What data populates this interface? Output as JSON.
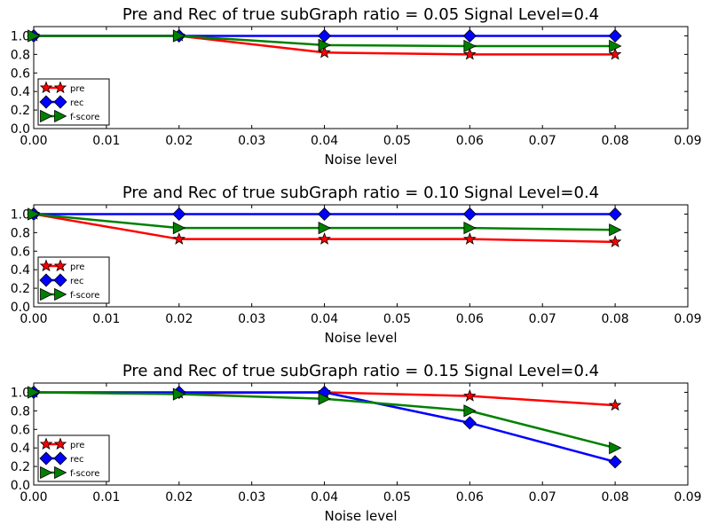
{
  "chart_data": [
    {
      "type": "line",
      "title": "Pre and Rec of true subGraph ratio = 0.05 Signal Level=0.4",
      "xlabel": "Noise level",
      "ylabel": "",
      "xlim": [
        0.0,
        0.09
      ],
      "ylim": [
        0.0,
        1.1
      ],
      "xticks": [
        "0.00",
        "0.01",
        "0.02",
        "0.03",
        "0.04",
        "0.05",
        "0.06",
        "0.07",
        "0.08",
        "0.09"
      ],
      "yticks": [
        "0.0",
        "0.2",
        "0.4",
        "0.6",
        "0.8",
        "1.0"
      ],
      "grid": false,
      "legend_position": "lower-left",
      "x": [
        0.0,
        0.02,
        0.04,
        0.06,
        0.08
      ],
      "series": [
        {
          "name": "pre",
          "color": "#ff0000",
          "marker": "star",
          "values": [
            1.0,
            1.0,
            0.82,
            0.8,
            0.8
          ]
        },
        {
          "name": "rec",
          "color": "#0000ff",
          "marker": "diamond",
          "values": [
            1.0,
            1.0,
            1.0,
            1.0,
            1.0
          ]
        },
        {
          "name": "f-score",
          "color": "#008000",
          "marker": "triangle-right",
          "values": [
            1.0,
            1.0,
            0.9,
            0.89,
            0.89
          ]
        }
      ]
    },
    {
      "type": "line",
      "title": "Pre and Rec of true subGraph ratio = 0.10 Signal Level=0.4",
      "xlabel": "Noise level",
      "ylabel": "",
      "xlim": [
        0.0,
        0.09
      ],
      "ylim": [
        0.0,
        1.1
      ],
      "xticks": [
        "0.00",
        "0.01",
        "0.02",
        "0.03",
        "0.04",
        "0.05",
        "0.06",
        "0.07",
        "0.08",
        "0.09"
      ],
      "yticks": [
        "0.0",
        "0.2",
        "0.4",
        "0.6",
        "0.8",
        "1.0"
      ],
      "grid": false,
      "legend_position": "lower-left",
      "x": [
        0.0,
        0.02,
        0.04,
        0.06,
        0.08
      ],
      "series": [
        {
          "name": "pre",
          "color": "#ff0000",
          "marker": "star",
          "values": [
            1.0,
            0.73,
            0.73,
            0.73,
            0.7
          ]
        },
        {
          "name": "rec",
          "color": "#0000ff",
          "marker": "diamond",
          "values": [
            1.0,
            1.0,
            1.0,
            1.0,
            1.0
          ]
        },
        {
          "name": "f-score",
          "color": "#008000",
          "marker": "triangle-right",
          "values": [
            1.0,
            0.85,
            0.85,
            0.85,
            0.83
          ]
        }
      ]
    },
    {
      "type": "line",
      "title": "Pre and Rec of true subGraph ratio = 0.15 Signal Level=0.4",
      "xlabel": "Noise level",
      "ylabel": "",
      "xlim": [
        0.0,
        0.09
      ],
      "ylim": [
        0.0,
        1.1
      ],
      "xticks": [
        "0.00",
        "0.01",
        "0.02",
        "0.03",
        "0.04",
        "0.05",
        "0.06",
        "0.07",
        "0.08",
        "0.09"
      ],
      "yticks": [
        "0.0",
        "0.2",
        "0.4",
        "0.6",
        "0.8",
        "1.0"
      ],
      "grid": false,
      "legend_position": "lower-left",
      "x": [
        0.0,
        0.02,
        0.04,
        0.06,
        0.08
      ],
      "series": [
        {
          "name": "pre",
          "color": "#ff0000",
          "marker": "star",
          "values": [
            1.0,
            0.99,
            1.0,
            0.96,
            0.86
          ]
        },
        {
          "name": "rec",
          "color": "#0000ff",
          "marker": "diamond",
          "values": [
            1.0,
            1.0,
            1.0,
            0.67,
            0.25
          ]
        },
        {
          "name": "f-score",
          "color": "#008000",
          "marker": "triangle-right",
          "values": [
            1.0,
            0.98,
            0.93,
            0.8,
            0.4
          ]
        }
      ]
    }
  ]
}
